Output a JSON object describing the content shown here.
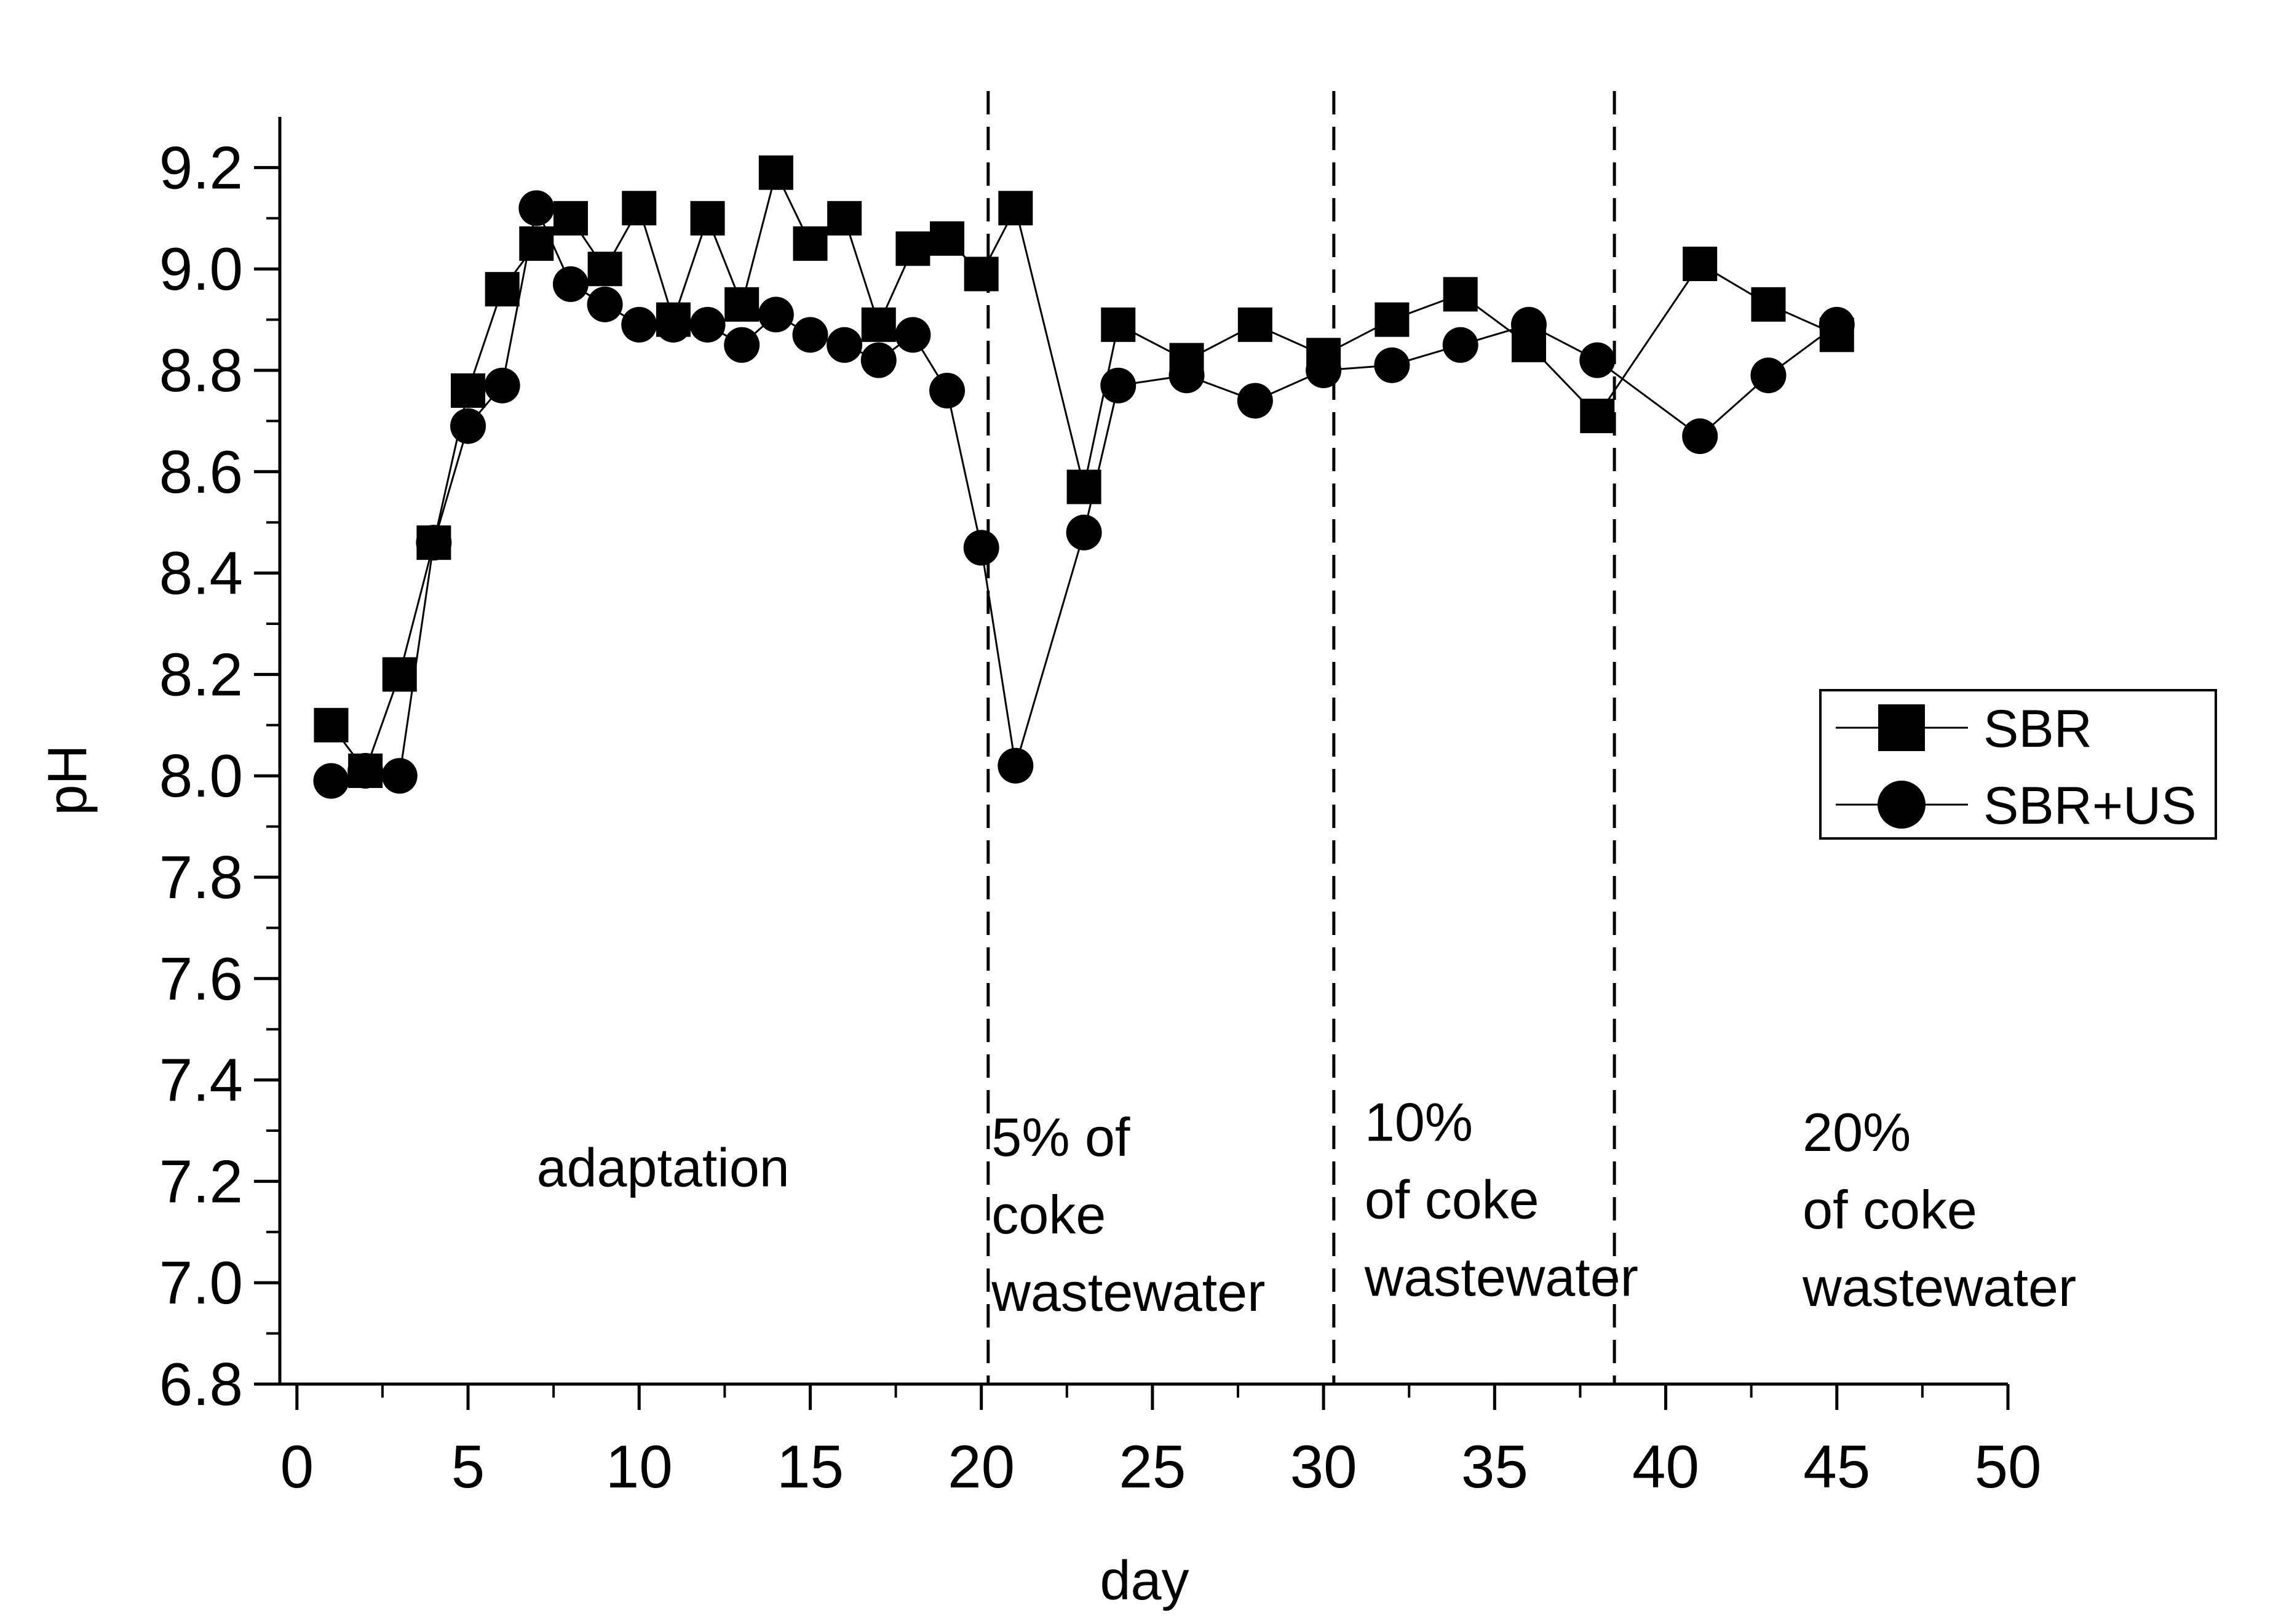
{
  "chart_data": {
    "type": "line",
    "title": "",
    "xlabel": "day",
    "ylabel": "pH",
    "xlim": [
      -0.5,
      50
    ],
    "ylim": [
      6.8,
      9.3
    ],
    "xticks": [
      0,
      5,
      10,
      15,
      20,
      25,
      30,
      35,
      40,
      45,
      50
    ],
    "yticks": [
      6.8,
      7.0,
      7.2,
      7.4,
      7.6,
      7.8,
      8.0,
      8.2,
      8.4,
      8.6,
      8.8,
      9.0,
      9.2
    ],
    "xtick_labels": [
      "0",
      "5",
      "10",
      "15",
      "20",
      "25",
      "30",
      "35",
      "40",
      "45",
      "50"
    ],
    "ytick_labels": [
      "6.8",
      "7.0",
      "7.2",
      "7.4",
      "7.6",
      "7.8",
      "8.0",
      "8.2",
      "8.4",
      "8.6",
      "8.8",
      "9.0",
      "9.2"
    ],
    "grid": false,
    "legend_position": "right",
    "series": [
      {
        "name": "SBR",
        "marker": "square",
        "x": [
          1,
          2,
          3,
          4,
          5,
          6,
          7,
          8,
          9,
          10,
          11,
          12,
          13,
          14,
          15,
          16,
          17,
          18,
          19,
          20,
          21,
          23,
          24,
          26,
          28,
          30,
          32,
          34,
          36,
          38,
          41,
          43,
          45
        ],
        "y": [
          8.1,
          8.01,
          8.2,
          8.46,
          8.76,
          8.96,
          9.05,
          9.1,
          9.0,
          9.12,
          8.9,
          9.1,
          8.93,
          9.19,
          9.05,
          9.1,
          8.89,
          9.04,
          9.06,
          8.99,
          9.12,
          8.57,
          8.89,
          8.82,
          8.89,
          8.83,
          8.9,
          8.95,
          8.85,
          8.71,
          9.01,
          8.93,
          8.87
        ]
      },
      {
        "name": "SBR+US",
        "marker": "circle",
        "x": [
          1,
          2,
          3,
          4,
          5,
          6,
          7,
          8,
          9,
          10,
          11,
          12,
          13,
          14,
          15,
          16,
          17,
          18,
          19,
          20,
          21,
          23,
          24,
          26,
          28,
          30,
          32,
          34,
          36,
          38,
          41,
          43,
          45
        ],
        "y": [
          7.99,
          8.01,
          8.0,
          8.46,
          8.69,
          8.77,
          9.12,
          8.97,
          8.93,
          8.89,
          8.89,
          8.89,
          8.85,
          8.91,
          8.87,
          8.85,
          8.82,
          8.87,
          8.76,
          8.45,
          8.02,
          8.48,
          8.77,
          8.79,
          8.74,
          8.8,
          8.81,
          8.85,
          8.89,
          8.82,
          8.67,
          8.79,
          8.89
        ]
      }
    ],
    "vlines": [
      20.2,
      30.3,
      38.5
    ],
    "annotations": [
      {
        "lines": [
          "adaptation"
        ],
        "x": 10.7,
        "y": 7.19,
        "align": "middle"
      },
      {
        "lines": [
          "5% of",
          "coke",
          "wastewater"
        ],
        "x": 20.3,
        "y": 7.25,
        "align": "start"
      },
      {
        "lines": [
          "10%",
          "of coke",
          "wastewater"
        ],
        "x": 31.2,
        "y": 7.28,
        "align": "start"
      },
      {
        "lines": [
          "20%",
          "of coke",
          "wastewater"
        ],
        "x": 44.0,
        "y": 7.26,
        "align": "start"
      }
    ]
  }
}
